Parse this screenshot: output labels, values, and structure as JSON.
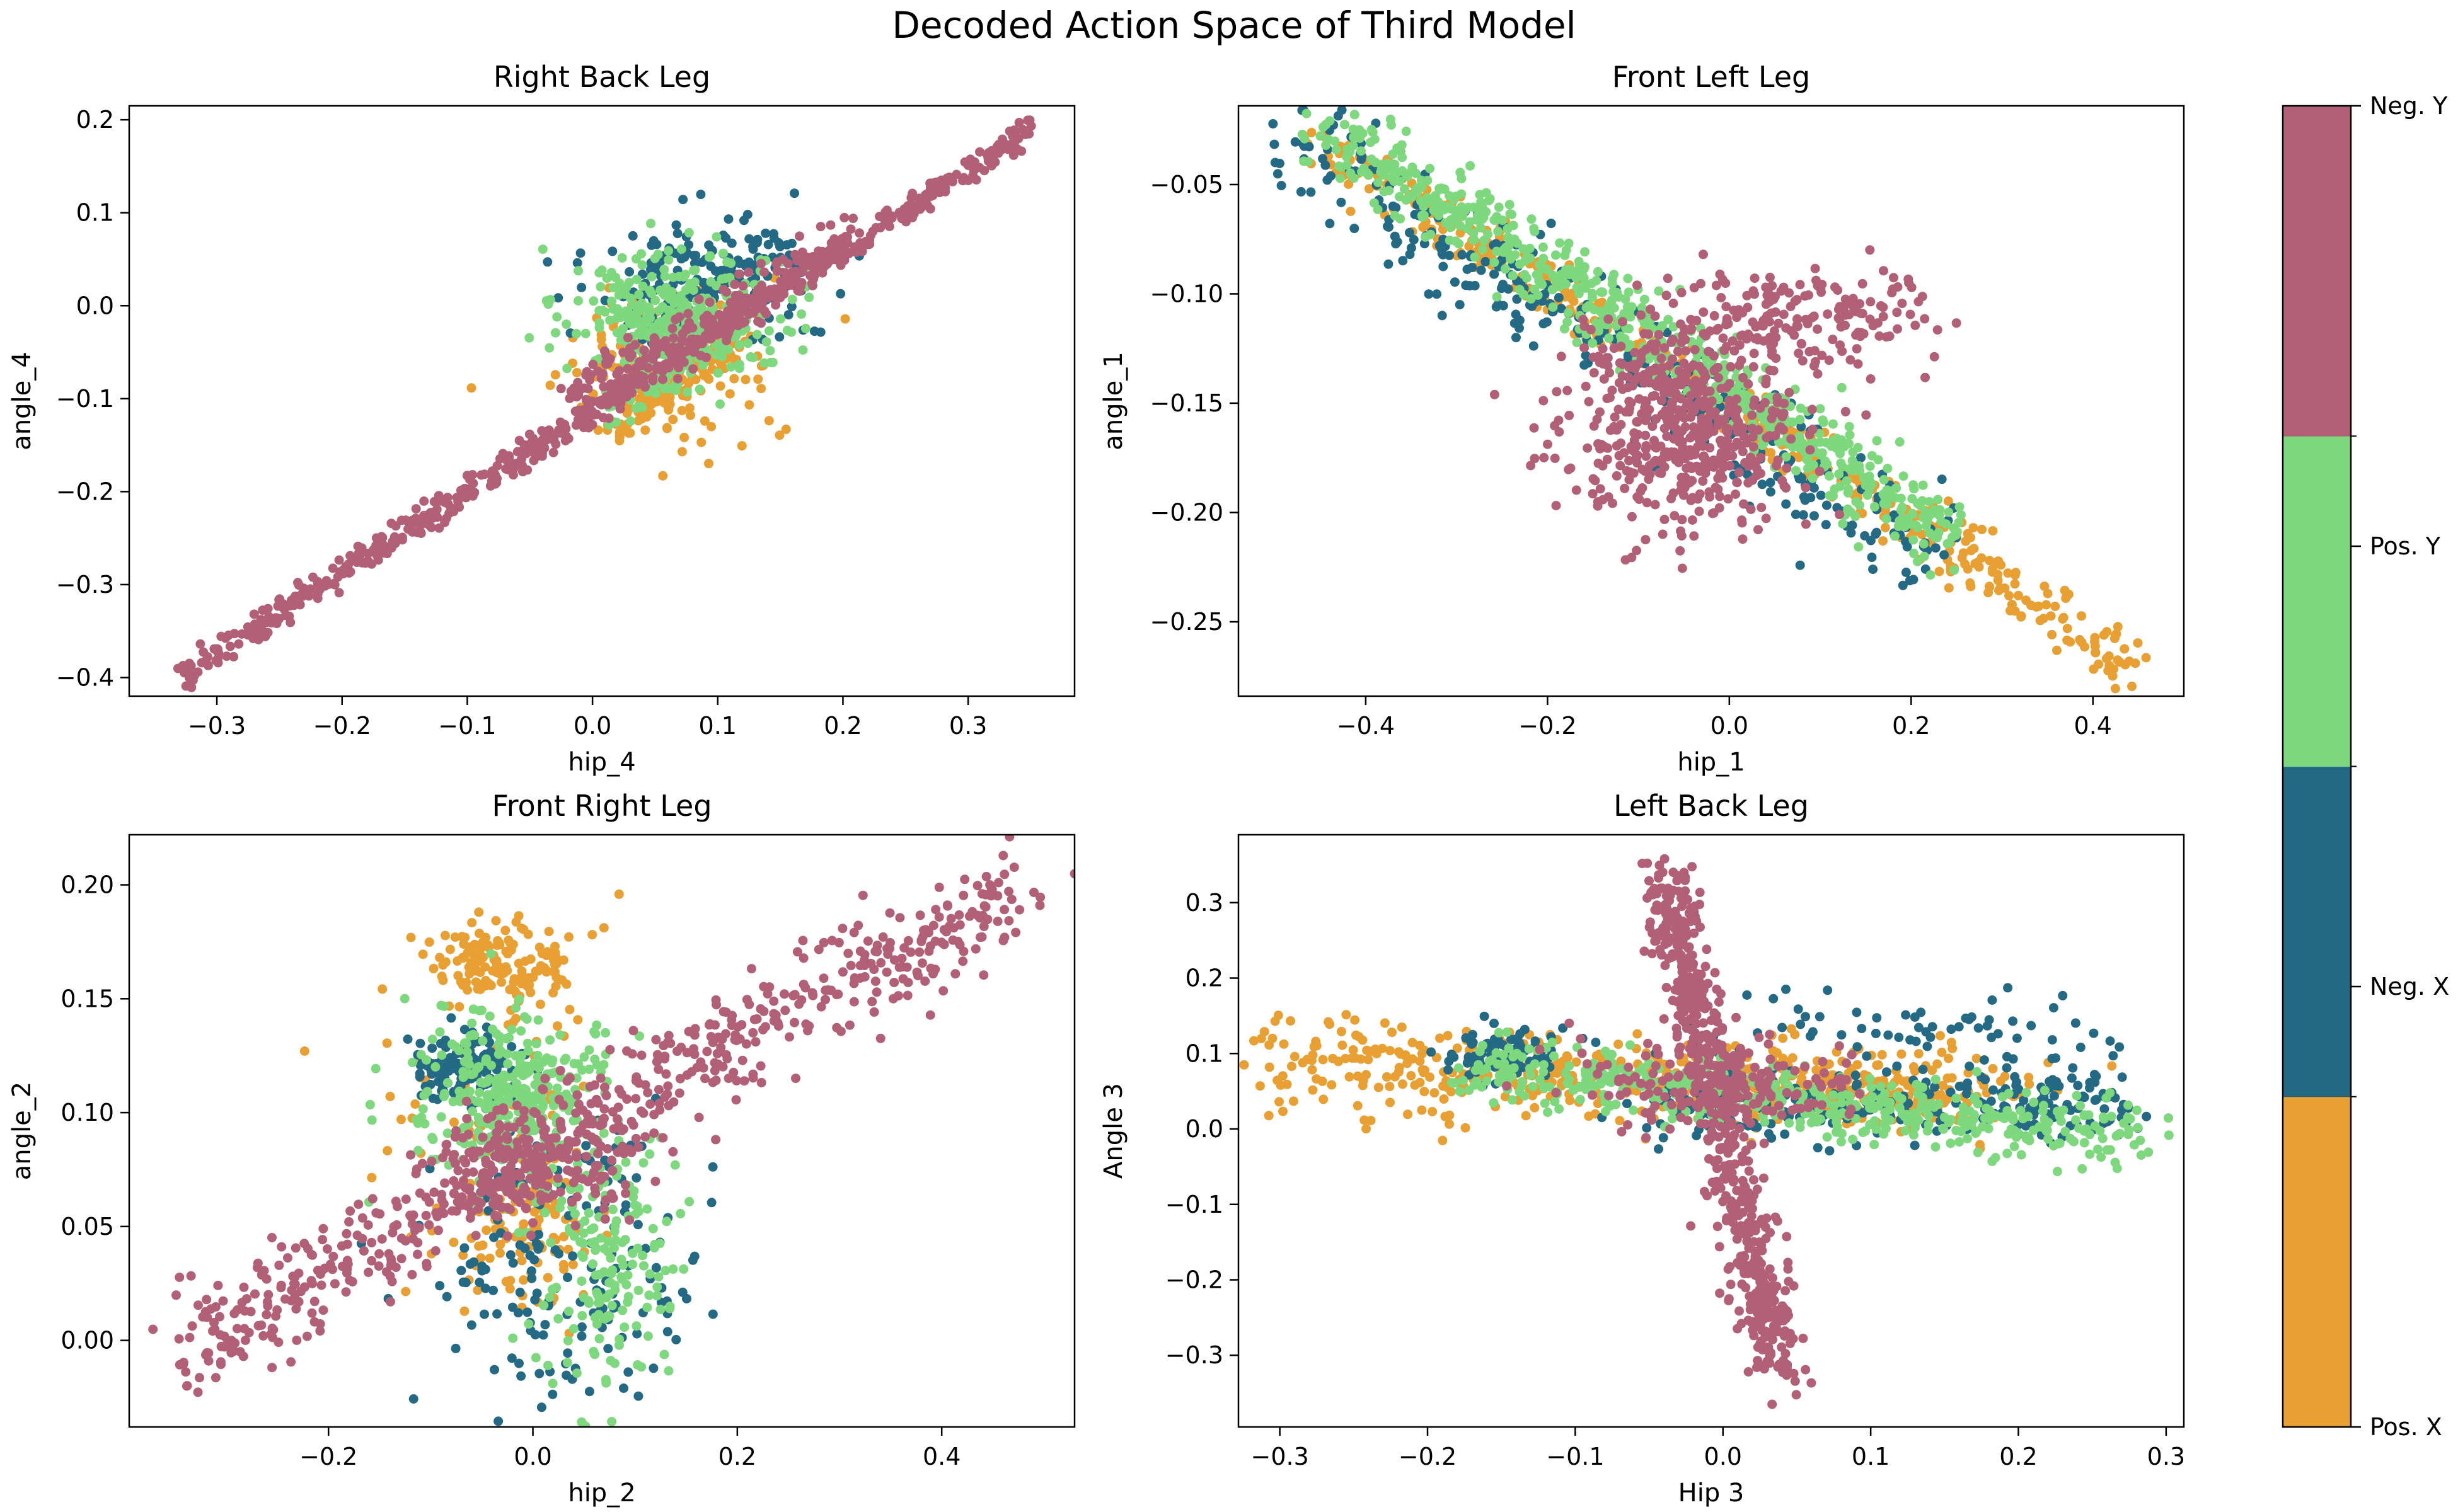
{
  "figure": {
    "title": "Decoded Action Space of Third Model"
  },
  "colors": {
    "pos_x": "#E8A033",
    "neg_x": "#246A85",
    "pos_y": "#7ED87E",
    "neg_y": "#B26077"
  },
  "colorbar": {
    "labels": [
      "Pos. X",
      "Neg. X",
      "Pos. Y",
      "Neg. Y"
    ]
  },
  "chart_data": [
    {
      "type": "scatter",
      "title": "Right Back Leg",
      "xlabel": "hip_4",
      "ylabel": "angle_4",
      "xlim": [
        -0.37,
        0.385
      ],
      "ylim": [
        -0.42,
        0.215
      ],
      "xticks": [
        -0.3,
        -0.2,
        -0.1,
        0.0,
        0.1,
        0.2,
        0.3
      ],
      "xtick_labels": [
        "−0.3",
        "−0.2",
        "−0.1",
        "0.0",
        "0.1",
        "0.2",
        "0.3"
      ],
      "yticks": [
        -0.4,
        -0.3,
        -0.2,
        -0.1,
        0.0,
        0.1,
        0.2
      ],
      "ytick_labels": [
        "−0.4",
        "−0.3",
        "−0.2",
        "−0.1",
        "0.0",
        "0.1",
        "0.2"
      ],
      "series": [
        {
          "name": "Pos. X",
          "clusters": [
            {
              "type": "blob",
              "center": [
                0.06,
                -0.07
              ],
              "spread": [
                0.04,
                0.045
              ],
              "n": 170
            },
            {
              "type": "line",
              "from": [
                0.02,
                -0.13
              ],
              "to": [
                0.12,
                -0.02
              ],
              "noise": 0.012,
              "n": 90
            }
          ]
        },
        {
          "name": "Neg. X",
          "clusters": [
            {
              "type": "blob",
              "center": [
                0.09,
                0.03
              ],
              "spread": [
                0.045,
                0.03
              ],
              "n": 150
            },
            {
              "type": "line",
              "from": [
                0.03,
                -0.04
              ],
              "to": [
                0.15,
                0.07
              ],
              "noise": 0.01,
              "n": 70
            }
          ]
        },
        {
          "name": "Pos. Y",
          "clusters": [
            {
              "type": "blob",
              "center": [
                0.07,
                -0.01
              ],
              "spread": [
                0.045,
                0.035
              ],
              "n": 320
            },
            {
              "type": "line",
              "from": [
                0.01,
                -0.12
              ],
              "to": [
                0.12,
                0.0
              ],
              "noise": 0.012,
              "n": 80
            }
          ]
        },
        {
          "name": "Neg. Y",
          "clusters": [
            {
              "type": "line",
              "from": [
                -0.33,
                -0.4
              ],
              "to": [
                0.35,
                0.19
              ],
              "noise": 0.007,
              "n": 700
            },
            {
              "type": "line",
              "from": [
                -0.02,
                -0.1
              ],
              "to": [
                0.2,
                0.07
              ],
              "noise": 0.012,
              "n": 180
            }
          ]
        }
      ]
    },
    {
      "type": "scatter",
      "title": "Front Left Leg",
      "xlabel": "hip_1",
      "ylabel": "angle_1",
      "xlim": [
        -0.54,
        0.5
      ],
      "ylim": [
        -0.284,
        -0.014
      ],
      "xticks": [
        -0.4,
        -0.2,
        0.0,
        0.2,
        0.4
      ],
      "xtick_labels": [
        "−0.4",
        "−0.2",
        "0.0",
        "0.2",
        "0.4"
      ],
      "yticks": [
        -0.25,
        -0.2,
        -0.15,
        -0.1,
        -0.05
      ],
      "ytick_labels": [
        "−0.25",
        "−0.20",
        "−0.15",
        "−0.10",
        "−0.05"
      ],
      "series": [
        {
          "name": "Pos. X",
          "clusters": [
            {
              "type": "line",
              "from": [
                -0.45,
                -0.03
              ],
              "to": [
                0.45,
                -0.272
              ],
              "noise": 0.006,
              "n": 450
            }
          ]
        },
        {
          "name": "Neg. X",
          "clusters": [
            {
              "type": "line",
              "from": [
                -0.49,
                -0.028
              ],
              "to": [
                0.23,
                -0.22
              ],
              "noise": 0.012,
              "n": 330
            }
          ]
        },
        {
          "name": "Pos. Y",
          "clusters": [
            {
              "type": "line",
              "from": [
                -0.44,
                -0.023
              ],
              "to": [
                0.24,
                -0.21
              ],
              "noise": 0.009,
              "n": 640
            }
          ]
        },
        {
          "name": "Neg. Y",
          "clusters": [
            {
              "type": "blob",
              "center": [
                -0.05,
                -0.165
              ],
              "spread": [
                0.07,
                0.022
              ],
              "n": 420
            },
            {
              "type": "blob",
              "center": [
                0.07,
                -0.11
              ],
              "spread": [
                0.08,
                0.011
              ],
              "n": 190
            },
            {
              "type": "line",
              "from": [
                -0.12,
                -0.13
              ],
              "to": [
                0.02,
                -0.17
              ],
              "noise": 0.01,
              "n": 120
            }
          ]
        }
      ]
    },
    {
      "type": "scatter",
      "title": "Front Right Leg",
      "xlabel": "hip_2",
      "ylabel": "angle_2",
      "xlim": [
        -0.395,
        0.53
      ],
      "ylim": [
        -0.038,
        0.222
      ],
      "xticks": [
        -0.2,
        0.0,
        0.2,
        0.4
      ],
      "xtick_labels": [
        "−0.2",
        "0.0",
        "0.2",
        "0.4"
      ],
      "yticks": [
        0.0,
        0.05,
        0.1,
        0.15,
        0.2
      ],
      "ytick_labels": [
        "0.00",
        "0.05",
        "0.10",
        "0.15",
        "0.20"
      ],
      "series": [
        {
          "name": "Pos. X",
          "clusters": [
            {
              "type": "blob",
              "center": [
                -0.03,
                0.165
              ],
              "spread": [
                0.035,
                0.01
              ],
              "n": 150
            },
            {
              "type": "blob",
              "center": [
                -0.01,
                0.05
              ],
              "spread": [
                0.035,
                0.02
              ],
              "n": 110
            },
            {
              "type": "blob",
              "center": [
                -0.04,
                0.1
              ],
              "spread": [
                0.07,
                0.03
              ],
              "n": 60
            }
          ]
        },
        {
          "name": "Neg. X",
          "clusters": [
            {
              "type": "blob",
              "center": [
                -0.06,
                0.12
              ],
              "spread": [
                0.025,
                0.008
              ],
              "n": 130
            },
            {
              "type": "blob",
              "center": [
                0.03,
                0.03
              ],
              "spread": [
                0.06,
                0.035
              ],
              "n": 180
            }
          ]
        },
        {
          "name": "Pos. Y",
          "clusters": [
            {
              "type": "blob",
              "center": [
                -0.02,
                0.105
              ],
              "spread": [
                0.045,
                0.02
              ],
              "n": 360
            },
            {
              "type": "blob",
              "center": [
                0.07,
                0.03
              ],
              "spread": [
                0.035,
                0.03
              ],
              "n": 170
            }
          ]
        },
        {
          "name": "Neg. Y",
          "clusters": [
            {
              "type": "line",
              "from": [
                -0.35,
                -0.005
              ],
              "to": [
                0.48,
                0.2
              ],
              "noise": 0.011,
              "n": 650
            },
            {
              "type": "blob",
              "center": [
                -0.01,
                0.075
              ],
              "spread": [
                0.05,
                0.012
              ],
              "n": 170
            }
          ]
        }
      ]
    },
    {
      "type": "scatter",
      "title": "Left Back Leg",
      "xlabel": "Hip 3",
      "ylabel": "Angle 3",
      "xlim": [
        -0.328,
        0.312
      ],
      "ylim": [
        -0.395,
        0.39
      ],
      "xticks": [
        -0.3,
        -0.2,
        -0.1,
        0.0,
        0.1,
        0.2,
        0.3
      ],
      "xtick_labels": [
        "−0.3",
        "−0.2",
        "−0.1",
        "0.0",
        "0.1",
        "0.2",
        "0.3"
      ],
      "yticks": [
        -0.3,
        -0.2,
        -0.1,
        0.0,
        0.1,
        0.2,
        0.3
      ],
      "ytick_labels": [
        "−0.3",
        "−0.2",
        "−0.1",
        "0.0",
        "0.1",
        "0.2",
        "0.3"
      ],
      "series": [
        {
          "name": "Pos. X",
          "clusters": [
            {
              "type": "line",
              "from": [
                -0.31,
                0.09
              ],
              "to": [
                0.17,
                0.05
              ],
              "noise": 0.03,
              "n": 430
            },
            {
              "type": "blob",
              "center": [
                0.08,
                0.05
              ],
              "spread": [
                0.06,
                0.02
              ],
              "n": 160
            }
          ]
        },
        {
          "name": "Neg. X",
          "clusters": [
            {
              "type": "blob",
              "center": [
                -0.15,
                0.1
              ],
              "spread": [
                0.025,
                0.02
              ],
              "n": 90
            },
            {
              "type": "line",
              "from": [
                -0.05,
                0.03
              ],
              "to": [
                0.28,
                0.04
              ],
              "noise": 0.025,
              "n": 260
            },
            {
              "type": "blob",
              "center": [
                0.15,
                0.14
              ],
              "spread": [
                0.08,
                0.03
              ],
              "n": 60
            }
          ]
        },
        {
          "name": "Pos. Y",
          "clusters": [
            {
              "type": "line",
              "from": [
                -0.17,
                0.08
              ],
              "to": [
                0.28,
                -0.01
              ],
              "noise": 0.022,
              "n": 480
            }
          ]
        },
        {
          "name": "Neg. Y",
          "clusters": [
            {
              "type": "line",
              "from": [
                -0.04,
                0.34
              ],
              "to": [
                0.0,
                0.0
              ],
              "noise": 0.018,
              "n": 330
            },
            {
              "type": "line",
              "from": [
                0.0,
                0.0
              ],
              "to": [
                0.04,
                -0.33
              ],
              "noise": 0.02,
              "n": 300
            },
            {
              "type": "blob",
              "center": [
                0.0,
                0.06
              ],
              "spread": [
                0.05,
                0.03
              ],
              "n": 170
            }
          ]
        }
      ]
    }
  ]
}
